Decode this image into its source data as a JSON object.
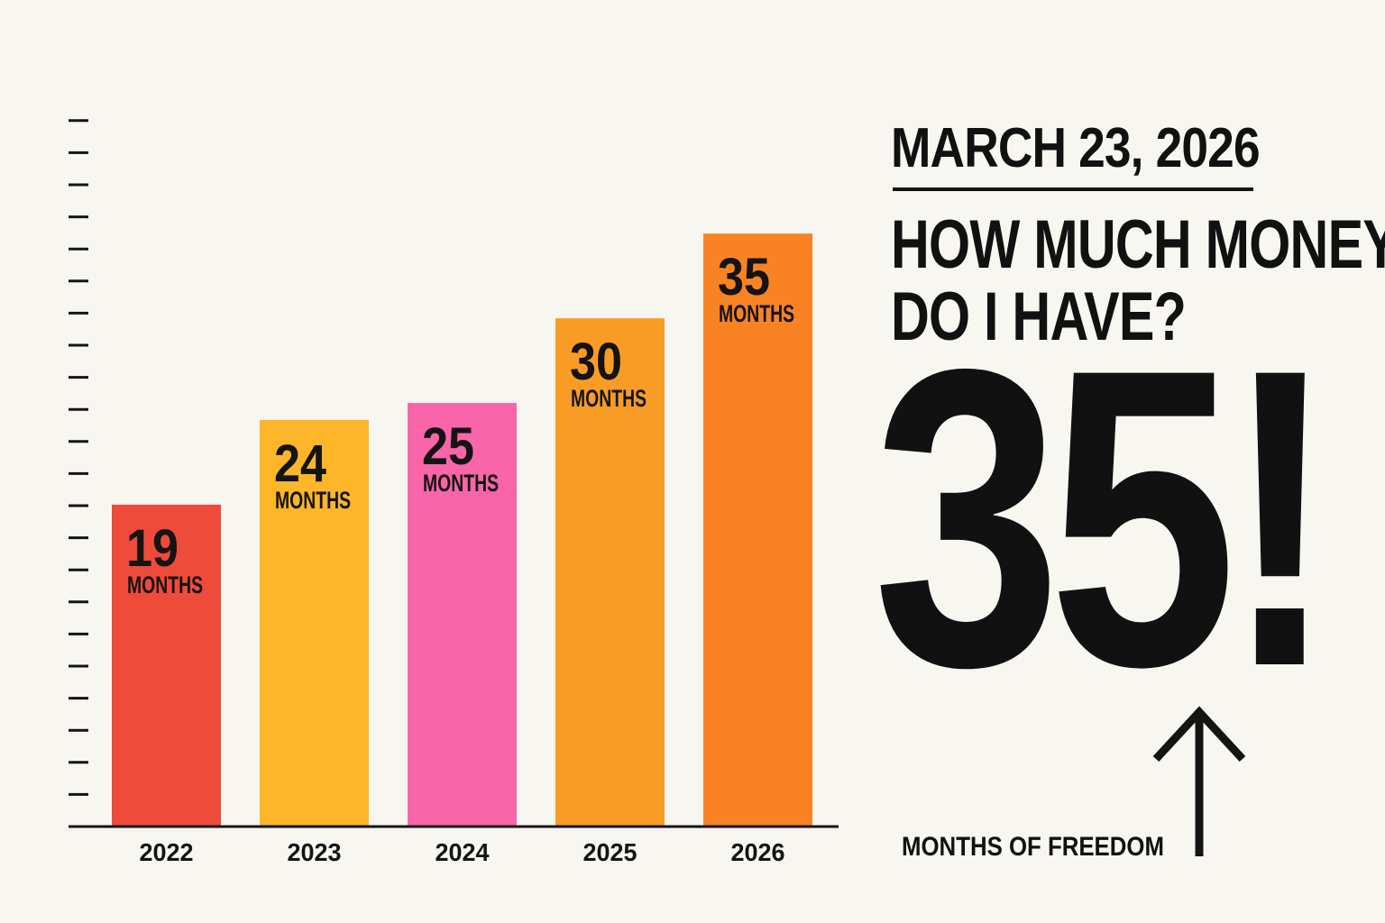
{
  "chart_data": {
    "type": "bar",
    "categories": [
      "2022",
      "2023",
      "2024",
      "2025",
      "2026"
    ],
    "values": [
      19,
      24,
      25,
      30,
      35
    ],
    "value_unit": "MONTHS",
    "colors": [
      "#ee4b3a",
      "#fdb52a",
      "#f865a8",
      "#f99c26",
      "#f98322"
    ],
    "ylim": [
      0,
      44
    ],
    "y_tick_count": 22,
    "grid": false,
    "legend": "none",
    "axis_color": "#141414"
  },
  "panel": {
    "date": "MARCH 23, 2026",
    "question_line1": "HOW MUCH MONEY",
    "question_line2": "DO I HAVE?",
    "big_value": "35!",
    "caption": "MONTHS OF FREEDOM",
    "arrow_icon": "up-arrow-icon"
  }
}
